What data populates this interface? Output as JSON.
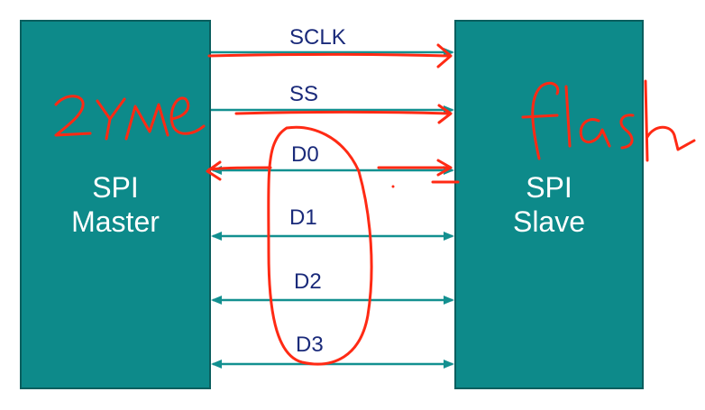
{
  "master": {
    "label": "SPI\nMaster"
  },
  "slave": {
    "label": "SPI\nSlave"
  },
  "signals": [
    {
      "name": "SCLK"
    },
    {
      "name": "SS"
    },
    {
      "name": "D0"
    },
    {
      "name": "D1"
    },
    {
      "name": "D2"
    },
    {
      "name": "D3"
    }
  ],
  "annotations": {
    "left_handwriting": "2YMe",
    "right_handwriting": "flash"
  },
  "colors": {
    "box_fill": "#0d8a8a",
    "line": "#139090",
    "signal_text": "#1a2a7a",
    "ink": "#ff2a14"
  }
}
